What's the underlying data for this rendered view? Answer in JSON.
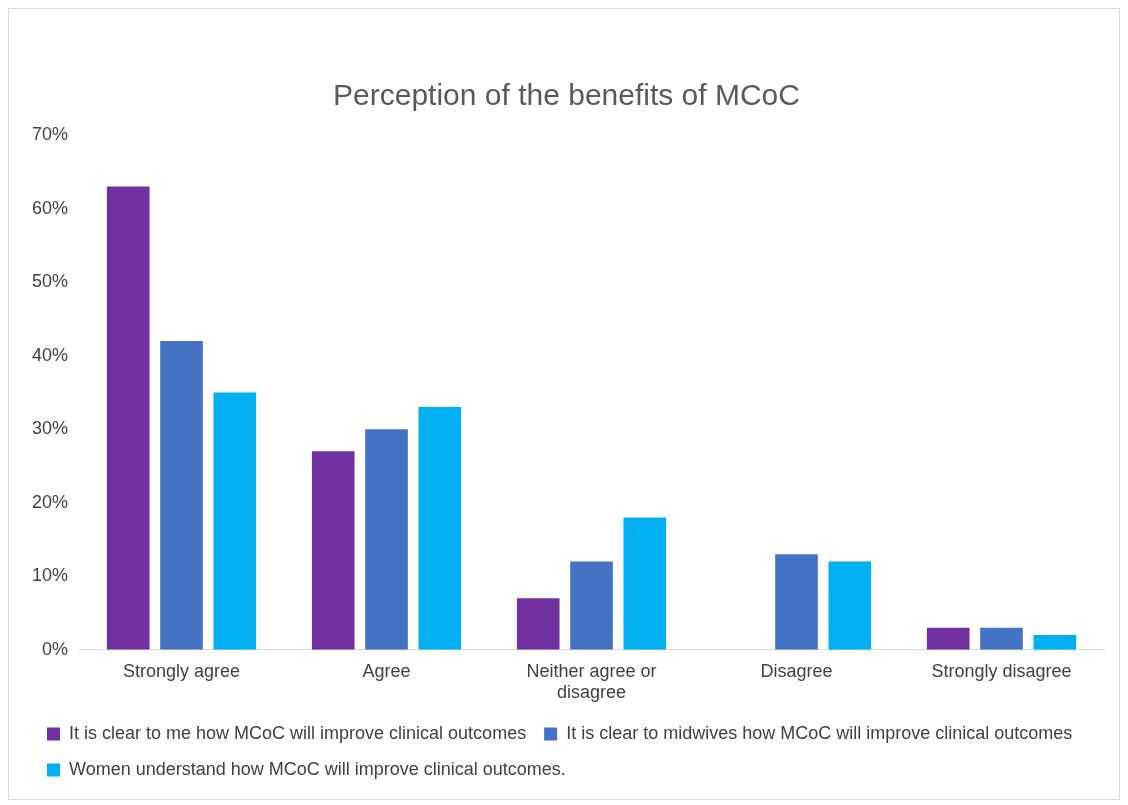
{
  "chart_data": {
    "type": "bar",
    "title": "Perception of the benefits of MCoC",
    "categories": [
      "Strongly agree",
      "Agree",
      "Neither agree or disagree",
      "Disagree",
      "Strongly disagree"
    ],
    "series": [
      {
        "name": "It is clear to me how MCoC will improve clinical outcomes",
        "color": "#7030a0",
        "values": [
          63,
          27,
          7,
          0,
          3
        ]
      },
      {
        "name": "It is clear to midwives how MCoC will improve clinical outcomes",
        "color": "#4472c4",
        "values": [
          42,
          30,
          12,
          13,
          3
        ]
      },
      {
        "name": "Women understand how MCoC will improve clinical outcomes.",
        "color": "#00b0f0",
        "values": [
          35,
          33,
          18,
          12,
          2
        ]
      }
    ],
    "ylim": [
      0,
      70
    ],
    "yticks": [
      {
        "value": 0,
        "label": "0%"
      },
      {
        "value": 10,
        "label": "10%"
      },
      {
        "value": 20,
        "label": "20%"
      },
      {
        "value": 30,
        "label": "30%"
      },
      {
        "value": 40,
        "label": "40%"
      },
      {
        "value": 50,
        "label": "50%"
      },
      {
        "value": 60,
        "label": "60%"
      },
      {
        "value": 70,
        "label": "70%"
      }
    ],
    "grid": false,
    "legend": "bottom"
  }
}
